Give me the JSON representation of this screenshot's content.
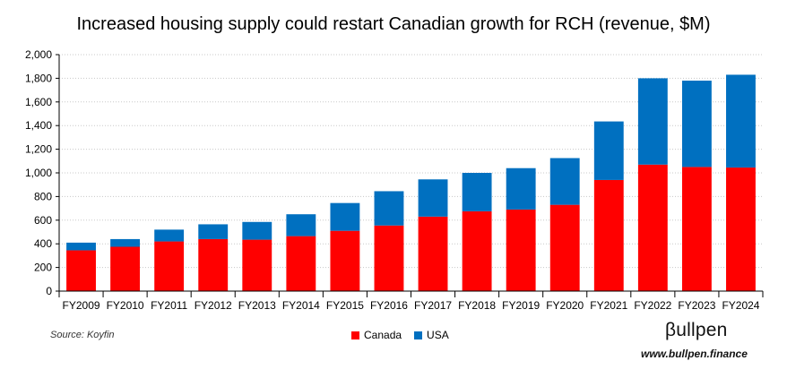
{
  "chart_data": {
    "type": "bar",
    "stacked": true,
    "title": "Increased housing supply could restart Canadian growth for RCH (revenue, $M)",
    "categories": [
      "FY2009",
      "FY2010",
      "FY2011",
      "FY2012",
      "FY2013",
      "FY2014",
      "FY2015",
      "FY2016",
      "FY2017",
      "FY2018",
      "FY2019",
      "FY2020",
      "FY2021",
      "FY2022",
      "FY2023",
      "FY2024"
    ],
    "series": [
      {
        "name": "Canada",
        "color": "#ff0000",
        "values": [
          345,
          375,
          420,
          440,
          435,
          465,
          510,
          555,
          630,
          675,
          690,
          730,
          940,
          1070,
          1050,
          1045
        ]
      },
      {
        "name": "USA",
        "color": "#0070c0",
        "values": [
          65,
          65,
          100,
          125,
          150,
          185,
          235,
          290,
          315,
          325,
          350,
          395,
          495,
          730,
          730,
          785
        ]
      }
    ],
    "ylim": [
      0,
      2000
    ],
    "yticks": [
      "0",
      "200",
      "400",
      "600",
      "800",
      "1,000",
      "1,200",
      "1,400",
      "1,600",
      "1,800",
      "2,000"
    ],
    "grid": true,
    "legend": "bottom-center"
  },
  "footer": {
    "source": "Source: Koyfin",
    "logo": "βullpen",
    "url": "www.bullpen.finance"
  }
}
